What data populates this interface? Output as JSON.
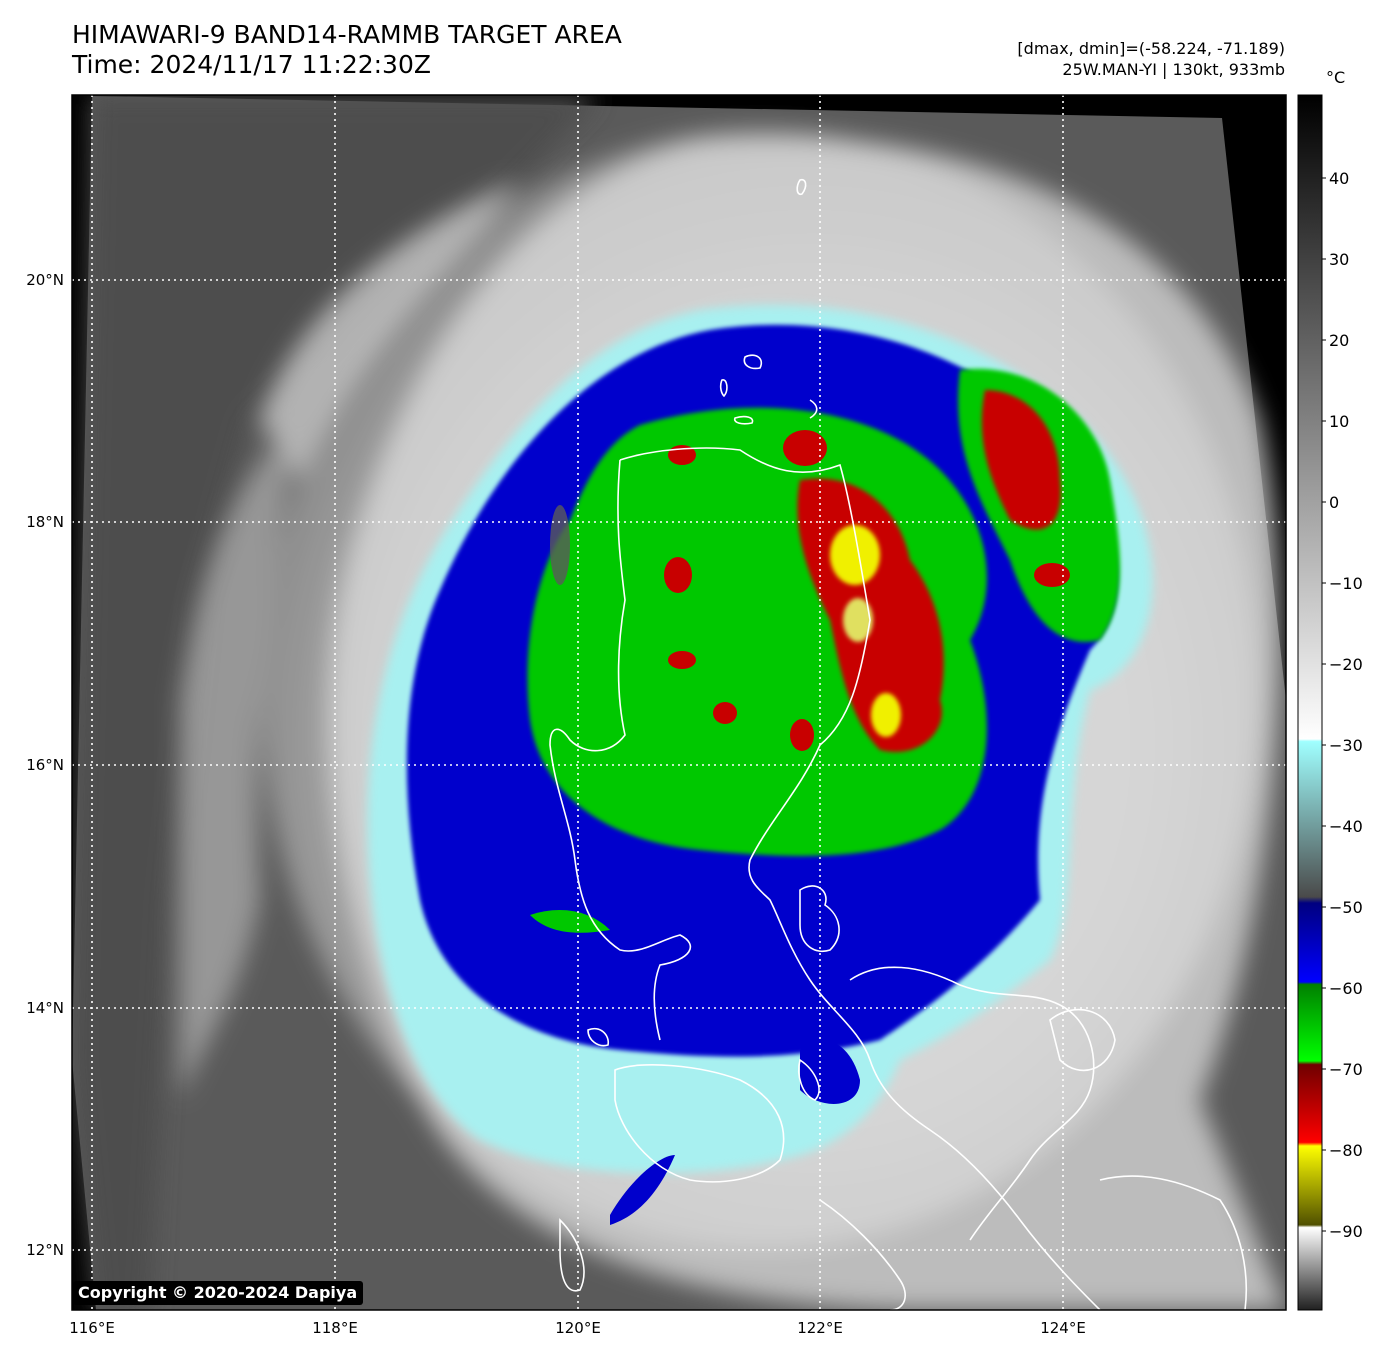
{
  "header": {
    "title_line1": "HIMAWARI-9 BAND14-RAMMB TARGET AREA",
    "title_line2": "Time: 2024/11/17 11:22:30Z",
    "info_line1": "[dmax, dmin]=(-58.224, -71.189)",
    "info_line2": "25W.MAN-YI | 130kt, 933mb"
  },
  "map": {
    "lon_ticks": [
      "116°E",
      "118°E",
      "120°E",
      "122°E",
      "124°E"
    ],
    "lat_ticks": [
      "20°N",
      "18°N",
      "16°N",
      "14°N",
      "12°N"
    ]
  },
  "colorbar": {
    "unit": "°C",
    "labels": [
      "40",
      "30",
      "20",
      "10",
      "0",
      "−10",
      "−20",
      "−30",
      "−40",
      "−50",
      "−60",
      "−70",
      "−80",
      "−90"
    ]
  },
  "copyright": "Copyright © 2020-2024 Dapiya",
  "colors": {
    "cyan": "#a8f0f0",
    "blue": "#0000cc",
    "green": "#00c800",
    "red": "#c80000",
    "yellow": "#f0f000"
  }
}
